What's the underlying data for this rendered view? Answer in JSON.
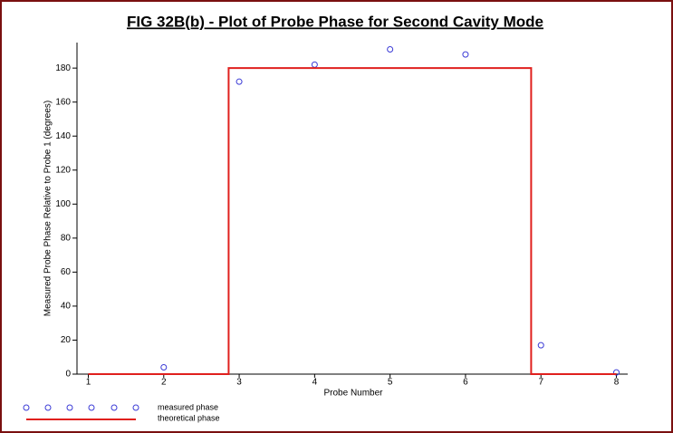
{
  "chart_data": {
    "type": "scatter",
    "title": "FIG 32B(b)  - Plot of Probe Phase for Second Cavity Mode",
    "x_label": "Probe Number",
    "y_label": "Measured Probe Phase Relative to Probe 1 (degrees)",
    "xlim": [
      0.85,
      8.15
    ],
    "xticks": [
      1,
      2,
      3,
      4,
      5,
      6,
      7,
      8
    ],
    "ylim": [
      0,
      195
    ],
    "yticks": [
      0,
      20,
      40,
      60,
      80,
      100,
      120,
      140,
      160,
      180
    ],
    "series": [
      {
        "name": "measured phase",
        "mode": "markers",
        "color": "#3b3bd6",
        "x": [
          2,
          3,
          4,
          5,
          6,
          7,
          8
        ],
        "values": [
          4,
          172,
          182,
          191,
          188,
          17,
          1
        ]
      },
      {
        "name": "theoretical phase",
        "mode": "line",
        "color": "#e0201e",
        "x": [
          1,
          2.86,
          2.86,
          6.87,
          6.87,
          8
        ],
        "values": [
          0,
          0,
          180,
          180,
          0,
          0
        ]
      }
    ]
  }
}
